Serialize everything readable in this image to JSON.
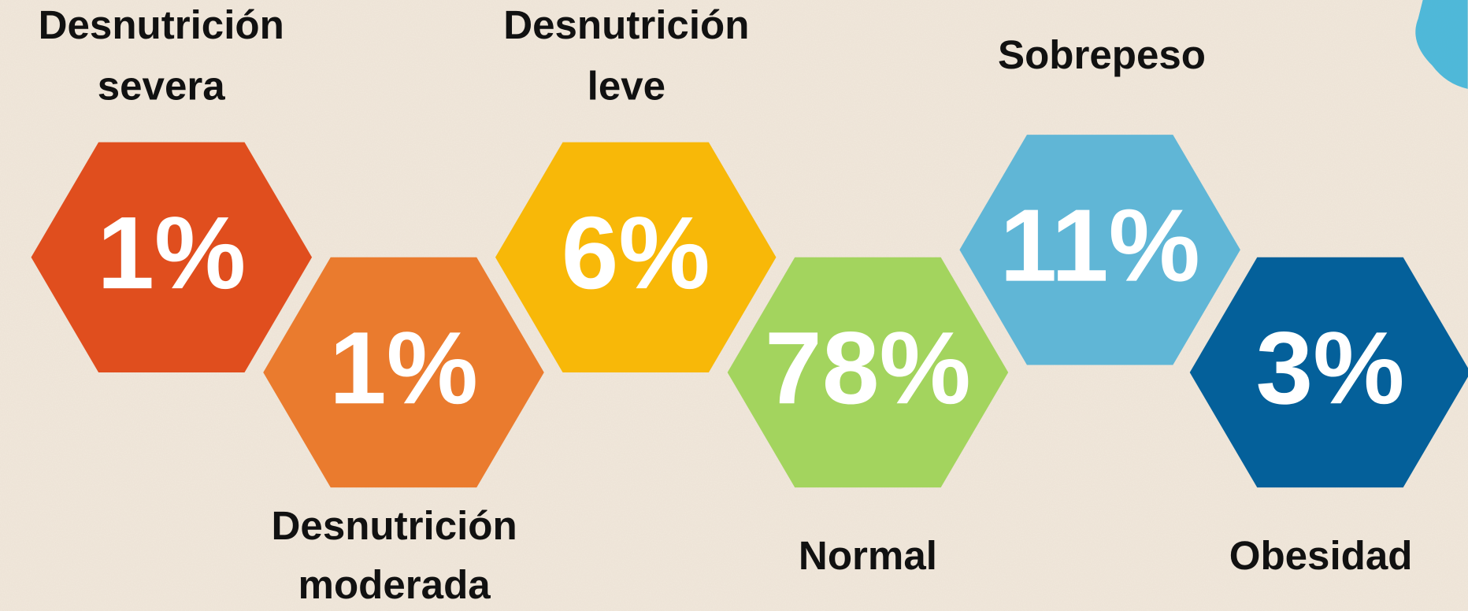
{
  "items": [
    {
      "label_lines": [
        "Desnutrición",
        "severa"
      ],
      "value": "1%",
      "color": "#e04e1e"
    },
    {
      "label_lines": [
        "Desnutrición",
        "moderada"
      ],
      "value": "1%",
      "color": "#ea7b2e"
    },
    {
      "label_lines": [
        "Desnutrición",
        "leve"
      ],
      "value": "6%",
      "color": "#f8b808"
    },
    {
      "label_lines": [
        "Normal"
      ],
      "value": "78%",
      "color": "#a3d45e"
    },
    {
      "label_lines": [
        "Sobrepeso"
      ],
      "value": "11%",
      "color": "#60b6d6"
    },
    {
      "label_lines": [
        "Obesidad"
      ],
      "value": "3%",
      "color": "#04609a"
    }
  ]
}
